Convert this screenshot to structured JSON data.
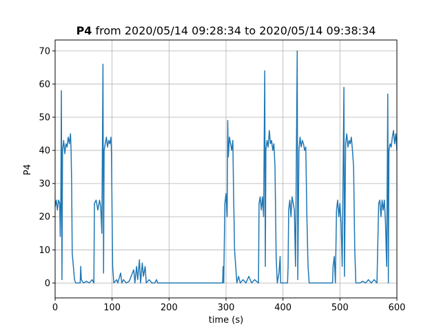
{
  "chart_data": {
    "type": "line",
    "title": {
      "name": "P4",
      "range": "from 2020/05/14 09:28:34 to 2020/05/14 09:38:34"
    },
    "x_label": "time (s)",
    "y_label": "P4",
    "grid": true,
    "xlim": [
      0,
      600
    ],
    "xticks": [
      0,
      100,
      200,
      300,
      400,
      500,
      600
    ],
    "ylim": [
      -4.5,
      73.3
    ],
    "yticks": [
      0,
      10,
      20,
      30,
      40,
      50,
      60,
      70
    ],
    "series": [
      {
        "color": "#1f77b4",
        "x": [
          0,
          2,
          4,
          6,
          8,
          9,
          10,
          11,
          12,
          13,
          15,
          17,
          19,
          21,
          23,
          25,
          27,
          28,
          29,
          30,
          32,
          34,
          36,
          40,
          44,
          45,
          46,
          50,
          55,
          60,
          65,
          68,
          69,
          72,
          75,
          78,
          80,
          82,
          84,
          85,
          86,
          88,
          90,
          92,
          94,
          96,
          98,
          99,
          100,
          101,
          103,
          108,
          110,
          115,
          117,
          120,
          125,
          130,
          138,
          140,
          143,
          145,
          148,
          150,
          153,
          155,
          158,
          160,
          165,
          170,
          175,
          178,
          180,
          200,
          250,
          294,
          295,
          296,
          298,
          300,
          302,
          303,
          304,
          306,
          308,
          310,
          312,
          313,
          315,
          317,
          319,
          322,
          325,
          330,
          335,
          340,
          345,
          350,
          357,
          358,
          360,
          362,
          364,
          366,
          368,
          369,
          370,
          372,
          374,
          376,
          378,
          380,
          382,
          384,
          386,
          388,
          390,
          393,
          395,
          396,
          400,
          405,
          408,
          409,
          410,
          412,
          414,
          416,
          418,
          420,
          422,
          425,
          426,
          428,
          430,
          432,
          434,
          436,
          438,
          440,
          442,
          444,
          446,
          450,
          460,
          470,
          487,
          488,
          490,
          492,
          494,
          496,
          498,
          500,
          502,
          504,
          507,
          508,
          510,
          512,
          514,
          516,
          518,
          520,
          522,
          524,
          526,
          528,
          535,
          540,
          545,
          550,
          555,
          560,
          565,
          566,
          568,
          570,
          572,
          574,
          576,
          578,
          580,
          582,
          584,
          585,
          586,
          588,
          590,
          592,
          594,
          596,
          598,
          600
        ],
        "values": [
          23,
          25,
          22,
          25,
          24,
          14,
          25,
          58,
          1,
          40,
          43,
          39,
          42,
          41,
          44,
          42,
          45,
          40,
          30,
          9,
          5,
          1,
          0,
          0,
          0,
          5,
          1,
          0,
          0.5,
          0,
          1,
          0,
          24,
          25,
          22,
          25,
          23,
          15,
          66,
          3,
          40,
          42,
          44,
          41,
          43,
          42,
          44,
          39,
          20,
          5,
          0,
          1,
          0,
          3,
          0,
          1,
          0,
          0.5,
          4,
          0,
          5,
          1,
          7,
          0,
          6,
          2,
          5,
          0,
          1,
          0,
          0,
          1,
          0,
          0,
          0,
          0,
          5,
          0,
          24,
          27,
          20,
          49,
          38,
          44,
          42,
          40,
          43,
          30,
          10,
          5,
          0,
          2,
          0,
          1,
          0,
          2,
          0,
          1,
          0,
          24,
          26,
          22,
          26,
          20,
          64,
          5,
          40,
          43,
          41,
          46,
          42,
          43,
          40,
          42,
          35,
          8,
          0,
          3,
          8,
          0,
          0,
          0,
          0,
          5,
          22,
          25,
          20,
          26,
          24,
          22,
          5,
          70,
          1,
          40,
          44,
          41,
          43,
          42,
          40,
          41,
          20,
          5,
          0,
          0,
          0,
          0,
          0,
          5,
          8,
          0,
          22,
          25,
          20,
          24,
          18,
          5,
          59,
          2,
          42,
          45,
          41,
          43,
          42,
          44,
          40,
          35,
          10,
          0,
          0,
          0.5,
          0,
          1,
          0,
          1,
          0,
          8,
          24,
          25,
          20,
          25,
          22,
          25,
          18,
          5,
          57,
          0,
          40,
          42,
          41,
          44,
          46,
          42,
          45,
          40
        ]
      }
    ]
  }
}
